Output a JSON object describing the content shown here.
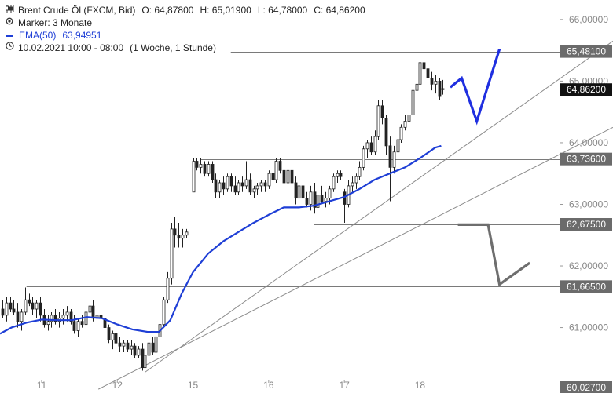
{
  "legend": {
    "instrument": "Brent Crude Öl (FXCM, Bid)",
    "open": "O: 64,87800",
    "high": "H: 65,01900",
    "low": "L: 64,78000",
    "close": "C: 64,86200",
    "marker": "Marker: 3 Monate",
    "ema_label": "EMA(50)",
    "ema_value": "63,94951",
    "date_range": "10.02.2021 10:00 - 08:00",
    "period": "(1 Woche, 1 Stunde)",
    "icons": [
      "candlestick-icon",
      "marker-icon",
      "ema-line-icon",
      "clock-icon"
    ]
  },
  "chart_data": {
    "type": "candlestick",
    "timeframe": "1 Stunde",
    "ylim": [
      60.027,
      66.1
    ],
    "yticks": [
      "66,00000",
      "65,00000",
      "64,00000",
      "63,00000",
      "62,00000",
      "61,00000"
    ],
    "xlim": [
      10.45,
      18.55
    ],
    "xticks": [
      {
        "x": 11,
        "label": "11"
      },
      {
        "x": 12,
        "label": "12"
      },
      {
        "x": 13,
        "label": "15"
      },
      {
        "x": 14,
        "label": "16"
      },
      {
        "x": 15,
        "label": "17"
      },
      {
        "x": 16,
        "label": "18"
      }
    ],
    "ohlc": [
      [
        10.48,
        61.3,
        61.45,
        61.15,
        61.2
      ],
      [
        10.53,
        61.2,
        61.5,
        61.1,
        61.4
      ],
      [
        10.58,
        61.4,
        61.5,
        61.25,
        61.3
      ],
      [
        10.63,
        61.3,
        61.45,
        61.2,
        61.25
      ],
      [
        10.68,
        61.25,
        61.4,
        61.0,
        61.1
      ],
      [
        10.73,
        61.1,
        61.3,
        60.95,
        61.25
      ],
      [
        10.78,
        61.25,
        61.65,
        61.2,
        61.45
      ],
      [
        10.83,
        61.45,
        61.55,
        61.35,
        61.4
      ],
      [
        10.88,
        61.4,
        61.5,
        61.2,
        61.3
      ],
      [
        10.93,
        61.3,
        61.45,
        61.15,
        61.4
      ],
      [
        10.98,
        61.4,
        61.5,
        61.1,
        61.2
      ],
      [
        11.03,
        61.2,
        61.3,
        61.0,
        61.05
      ],
      [
        11.08,
        61.05,
        61.2,
        60.95,
        61.1
      ],
      [
        11.13,
        61.1,
        61.25,
        61.0,
        61.2
      ],
      [
        11.18,
        61.2,
        61.3,
        61.05,
        61.1
      ],
      [
        11.23,
        61.1,
        61.25,
        61.0,
        61.15
      ],
      [
        11.28,
        61.15,
        61.3,
        61.05,
        61.2
      ],
      [
        11.33,
        61.2,
        61.35,
        61.1,
        61.25
      ],
      [
        11.38,
        61.25,
        61.3,
        61.05,
        61.1
      ],
      [
        11.43,
        61.1,
        61.2,
        60.9,
        60.95
      ],
      [
        11.48,
        60.95,
        61.15,
        60.85,
        61.1
      ],
      [
        11.53,
        61.1,
        61.2,
        61.0,
        61.05
      ],
      [
        11.58,
        61.05,
        61.3,
        61.0,
        61.25
      ],
      [
        11.63,
        61.25,
        61.4,
        61.2,
        61.35
      ],
      [
        11.68,
        61.35,
        61.45,
        61.1,
        61.15
      ],
      [
        11.73,
        61.15,
        61.3,
        61.05,
        61.2
      ],
      [
        11.78,
        61.2,
        61.3,
        61.1,
        61.15
      ],
      [
        11.83,
        61.15,
        61.25,
        60.95,
        61.0
      ],
      [
        11.88,
        61.0,
        61.05,
        60.75,
        60.8
      ],
      [
        11.93,
        60.8,
        60.95,
        60.65,
        60.9
      ],
      [
        11.98,
        60.9,
        61.0,
        60.7,
        60.75
      ],
      [
        12.03,
        60.75,
        60.85,
        60.6,
        60.7
      ],
      [
        12.08,
        60.7,
        60.8,
        60.6,
        60.75
      ],
      [
        12.13,
        60.75,
        60.8,
        60.6,
        60.65
      ],
      [
        12.18,
        60.65,
        60.8,
        60.55,
        60.7
      ],
      [
        12.23,
        60.7,
        60.75,
        60.5,
        60.55
      ],
      [
        12.28,
        60.55,
        60.7,
        60.5,
        60.65
      ],
      [
        12.33,
        60.65,
        60.75,
        60.3,
        60.35
      ],
      [
        12.36,
        60.35,
        60.6,
        60.25,
        60.55
      ],
      [
        12.41,
        60.55,
        60.8,
        60.5,
        60.75
      ],
      [
        12.46,
        60.75,
        60.85,
        60.55,
        60.6
      ],
      [
        12.51,
        60.6,
        60.9,
        60.55,
        60.85
      ],
      [
        12.56,
        60.85,
        61.1,
        60.8,
        61.05
      ],
      [
        12.61,
        61.05,
        61.5,
        61.0,
        61.45
      ],
      [
        12.66,
        61.45,
        61.9,
        61.4,
        61.8
      ],
      [
        12.71,
        61.8,
        62.7,
        61.7,
        62.6
      ],
      [
        12.76,
        62.6,
        62.8,
        62.3,
        62.5
      ],
      [
        12.81,
        62.5,
        62.7,
        62.3,
        62.45
      ],
      [
        12.86,
        62.45,
        62.6,
        62.3,
        62.5
      ],
      [
        12.91,
        62.5,
        62.6,
        62.45,
        62.55
      ],
      [
        13.0,
        63.2,
        63.75,
        63.2,
        63.7
      ],
      [
        13.05,
        63.7,
        63.75,
        63.55,
        63.6
      ],
      [
        13.1,
        63.6,
        63.75,
        63.5,
        63.65
      ],
      [
        13.15,
        63.65,
        63.7,
        63.45,
        63.5
      ],
      [
        13.2,
        63.5,
        63.7,
        63.45,
        63.65
      ],
      [
        13.25,
        63.65,
        63.7,
        63.35,
        63.4
      ],
      [
        13.3,
        63.4,
        63.5,
        63.1,
        63.2
      ],
      [
        13.35,
        63.2,
        63.4,
        63.1,
        63.35
      ],
      [
        13.4,
        63.35,
        63.45,
        63.15,
        63.25
      ],
      [
        13.45,
        63.25,
        63.5,
        63.2,
        63.45
      ],
      [
        13.5,
        63.45,
        63.5,
        63.2,
        63.3
      ],
      [
        13.55,
        63.3,
        63.45,
        63.15,
        63.2
      ],
      [
        13.6,
        63.2,
        63.4,
        63.15,
        63.35
      ],
      [
        13.65,
        63.35,
        63.45,
        63.2,
        63.3
      ],
      [
        13.7,
        63.3,
        63.7,
        63.25,
        63.4
      ],
      [
        13.75,
        63.4,
        63.5,
        63.15,
        63.2
      ],
      [
        13.8,
        63.2,
        63.3,
        63.1,
        63.25
      ],
      [
        13.85,
        63.25,
        63.35,
        63.15,
        63.3
      ],
      [
        13.9,
        63.3,
        63.4,
        63.2,
        63.35
      ],
      [
        13.95,
        63.35,
        63.4,
        63.2,
        63.3
      ],
      [
        14.0,
        63.3,
        63.55,
        63.25,
        63.5
      ],
      [
        14.05,
        63.5,
        63.6,
        63.3,
        63.4
      ],
      [
        14.1,
        63.4,
        63.75,
        63.35,
        63.7
      ],
      [
        14.15,
        63.7,
        63.75,
        63.5,
        63.55
      ],
      [
        14.2,
        63.55,
        63.6,
        63.3,
        63.35
      ],
      [
        14.25,
        63.35,
        63.6,
        63.3,
        63.55
      ],
      [
        14.3,
        63.55,
        63.6,
        63.3,
        63.35
      ],
      [
        14.35,
        63.35,
        63.45,
        63.0,
        63.1
      ],
      [
        14.4,
        63.1,
        63.4,
        63.05,
        63.3
      ],
      [
        14.45,
        63.3,
        63.35,
        63.05,
        63.1
      ],
      [
        14.5,
        63.1,
        63.2,
        62.95,
        63.0
      ],
      [
        14.55,
        63.0,
        63.3,
        62.9,
        63.2
      ],
      [
        14.6,
        63.2,
        63.35,
        62.85,
        62.95
      ],
      [
        14.65,
        62.95,
        63.2,
        62.7,
        63.15
      ],
      [
        14.7,
        63.15,
        63.3,
        63.0,
        63.05
      ],
      [
        14.75,
        63.05,
        63.2,
        62.95,
        63.1
      ],
      [
        14.8,
        63.1,
        63.3,
        63.0,
        63.25
      ],
      [
        14.85,
        63.25,
        63.5,
        63.2,
        63.45
      ],
      [
        14.9,
        63.45,
        63.55,
        63.35,
        63.5
      ],
      [
        14.95,
        63.5,
        63.55,
        63.4,
        63.45
      ],
      [
        15.0,
        63.2,
        63.25,
        62.7,
        63.0
      ],
      [
        15.05,
        63.0,
        63.4,
        62.95,
        63.3
      ],
      [
        15.1,
        63.3,
        63.45,
        63.2,
        63.35
      ],
      [
        15.15,
        63.35,
        63.5,
        63.25,
        63.45
      ],
      [
        15.2,
        63.45,
        63.7,
        63.4,
        63.6
      ],
      [
        15.25,
        63.6,
        63.95,
        63.55,
        63.9
      ],
      [
        15.3,
        63.9,
        64.05,
        63.75,
        64.0
      ],
      [
        15.35,
        64.0,
        64.1,
        63.8,
        63.85
      ],
      [
        15.4,
        63.85,
        64.2,
        63.8,
        64.1
      ],
      [
        15.45,
        64.1,
        64.7,
        64.05,
        64.6
      ],
      [
        15.5,
        64.6,
        64.7,
        64.3,
        64.4
      ],
      [
        15.55,
        64.4,
        64.45,
        63.8,
        63.95
      ],
      [
        15.6,
        63.95,
        64.1,
        63.05,
        63.6
      ],
      [
        15.65,
        63.6,
        63.95,
        63.5,
        63.85
      ],
      [
        15.7,
        63.85,
        64.1,
        63.8,
        64.05
      ],
      [
        15.75,
        64.05,
        64.3,
        64.0,
        64.25
      ],
      [
        15.8,
        64.25,
        64.45,
        64.2,
        64.35
      ],
      [
        15.85,
        64.35,
        64.5,
        64.3,
        64.45
      ],
      [
        15.9,
        64.45,
        64.9,
        64.4,
        64.85
      ],
      [
        15.95,
        64.85,
        65.0,
        64.75,
        64.95
      ],
      [
        16.0,
        64.95,
        65.48,
        64.9,
        65.3
      ],
      [
        16.05,
        65.3,
        65.48,
        65.1,
        65.2
      ],
      [
        16.1,
        65.2,
        65.35,
        64.95,
        65.05
      ],
      [
        16.15,
        65.05,
        65.15,
        64.85,
        64.95
      ],
      [
        16.2,
        64.95,
        65.1,
        64.8,
        65.0
      ],
      [
        16.25,
        65.0,
        65.05,
        64.7,
        64.75
      ],
      [
        16.3,
        64.878,
        65.019,
        64.78,
        64.862
      ]
    ],
    "ema": {
      "name": "EMA(50)",
      "color": "#1f3fd6",
      "x": [
        10.45,
        10.6,
        10.8,
        11.0,
        11.2,
        11.4,
        11.6,
        11.8,
        12.0,
        12.2,
        12.4,
        12.55,
        12.7,
        12.85,
        13.0,
        13.2,
        13.4,
        13.6,
        13.8,
        14.0,
        14.2,
        14.4,
        14.6,
        14.8,
        15.0,
        15.2,
        15.4,
        15.6,
        15.8,
        16.0,
        16.2,
        16.28
      ],
      "y": [
        60.9,
        61.0,
        61.08,
        61.13,
        61.12,
        61.12,
        61.17,
        61.15,
        61.05,
        60.97,
        60.93,
        60.93,
        61.12,
        61.55,
        61.9,
        62.2,
        62.4,
        62.55,
        62.7,
        62.83,
        62.95,
        62.95,
        62.98,
        63.05,
        63.12,
        63.25,
        63.4,
        63.5,
        63.6,
        63.75,
        63.92,
        63.95
      ]
    },
    "levels": [
      {
        "value": 65.481,
        "label": "65,48100",
        "from_x": 13.5
      },
      {
        "value": 63.736,
        "label": "63,73600",
        "from_x": 13.1
      },
      {
        "value": 62.675,
        "label": "62,67500",
        "from_x": 14.6
      },
      {
        "value": 61.665,
        "label": "61,66500",
        "from_x": 10.8
      }
    ],
    "current_price": {
      "value": 64.862,
      "label": "64,86200"
    },
    "axis_low": {
      "value": 60.027,
      "label": "60,02700"
    },
    "trendlines": [
      {
        "x1": 12.37,
        "y1": 60.28,
        "x2": 18.55,
        "y2": 65.65
      },
      {
        "x1": 11.75,
        "y1": 60.0,
        "x2": 18.55,
        "y2": 64.25
      }
    ],
    "projection_bullish": {
      "color": "#1f2fe0",
      "x": [
        16.4,
        16.55,
        16.75,
        17.05
      ],
      "y": [
        64.9,
        65.05,
        64.35,
        65.52
      ]
    },
    "projection_bearish": {
      "color": "#6e6e6e",
      "x": [
        16.5,
        16.9,
        17.05,
        17.45
      ],
      "y": [
        62.67,
        62.67,
        61.7,
        62.05
      ]
    },
    "grid": false
  }
}
